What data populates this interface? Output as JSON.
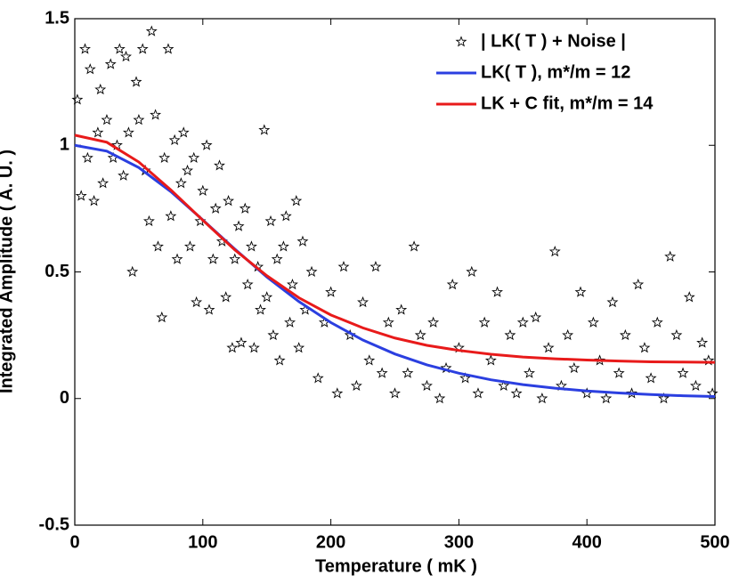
{
  "chart_data": {
    "type": "scatter",
    "xlabel": "Temperature ( mK )",
    "ylabel": "Integrated Amplitude ( A. U. )",
    "xlim": [
      0,
      500
    ],
    "xticks": [
      0,
      100,
      200,
      300,
      400,
      500
    ],
    "ylim": [
      -0.5,
      1.5
    ],
    "yticks": [
      -0.5,
      0,
      0.5,
      1,
      1.5
    ],
    "legend": "upper right",
    "scatter": {
      "name": "| LK( T ) + Noise |",
      "color": "#000000",
      "x": [
        2,
        5,
        8,
        10,
        12,
        15,
        18,
        20,
        22,
        25,
        28,
        30,
        33,
        35,
        38,
        40,
        42,
        45,
        48,
        50,
        53,
        55,
        58,
        60,
        63,
        65,
        68,
        70,
        73,
        75,
        78,
        80,
        83,
        85,
        88,
        90,
        93,
        95,
        98,
        100,
        103,
        105,
        108,
        110,
        113,
        115,
        118,
        120,
        123,
        125,
        128,
        130,
        133,
        135,
        138,
        140,
        143,
        145,
        148,
        150,
        153,
        155,
        158,
        160,
        163,
        165,
        168,
        170,
        173,
        175,
        178,
        180,
        185,
        190,
        195,
        200,
        205,
        210,
        215,
        220,
        225,
        230,
        235,
        240,
        245,
        250,
        255,
        260,
        265,
        270,
        275,
        280,
        285,
        290,
        295,
        300,
        305,
        310,
        315,
        320,
        325,
        330,
        335,
        340,
        345,
        350,
        355,
        360,
        365,
        370,
        375,
        380,
        385,
        390,
        395,
        400,
        405,
        410,
        415,
        420,
        425,
        430,
        435,
        440,
        445,
        450,
        455,
        460,
        465,
        470,
        475,
        480,
        485,
        490,
        495,
        498
      ],
      "y": [
        1.18,
        0.8,
        1.38,
        0.95,
        1.3,
        0.78,
        1.05,
        1.22,
        0.85,
        1.1,
        1.32,
        0.95,
        1.0,
        1.38,
        0.88,
        1.35,
        1.05,
        0.5,
        1.25,
        1.1,
        1.38,
        0.9,
        0.7,
        1.45,
        1.12,
        0.6,
        0.32,
        0.95,
        1.38,
        0.72,
        1.02,
        0.55,
        0.85,
        1.05,
        0.9,
        0.6,
        0.95,
        0.38,
        0.7,
        0.82,
        1.0,
        0.35,
        0.55,
        0.75,
        0.92,
        0.62,
        0.4,
        0.78,
        0.2,
        0.55,
        0.68,
        0.22,
        0.75,
        0.45,
        0.6,
        0.2,
        0.52,
        0.35,
        1.06,
        0.4,
        0.7,
        0.25,
        0.55,
        0.15,
        0.6,
        0.72,
        0.3,
        0.45,
        0.78,
        0.2,
        0.62,
        0.35,
        0.5,
        0.08,
        0.3,
        0.42,
        0.02,
        0.52,
        0.25,
        0.05,
        0.38,
        0.15,
        0.52,
        0.1,
        0.3,
        0.02,
        0.35,
        0.1,
        0.6,
        0.25,
        0.05,
        0.3,
        0.0,
        0.12,
        0.45,
        0.2,
        0.08,
        0.5,
        0.02,
        0.3,
        0.15,
        0.42,
        0.05,
        0.25,
        0.02,
        0.3,
        0.1,
        0.32,
        0.0,
        0.2,
        0.58,
        0.05,
        0.25,
        0.12,
        0.42,
        0.02,
        0.3,
        0.15,
        0.0,
        0.38,
        0.1,
        0.25,
        0.02,
        0.45,
        0.2,
        0.08,
        0.3,
        0.0,
        0.56,
        0.25,
        0.1,
        0.4,
        0.05,
        0.22,
        0.15,
        0.02
      ]
    },
    "x": [
      0,
      25,
      50,
      75,
      100,
      125,
      150,
      175,
      200,
      225,
      250,
      275,
      300,
      325,
      350,
      375,
      400,
      425,
      450,
      475,
      500
    ],
    "series": [
      {
        "name": "LK( T ), m*/m = 12",
        "color": "#2b3fe0",
        "values": [
          1.0,
          0.977,
          0.912,
          0.817,
          0.705,
          0.59,
          0.48,
          0.383,
          0.3,
          0.231,
          0.176,
          0.133,
          0.1,
          0.074,
          0.055,
          0.041,
          0.03,
          0.022,
          0.016,
          0.011,
          0.008
        ]
      },
      {
        "name": "LK + C fit, m*/m = 14",
        "color": "#e81a1a",
        "values": [
          1.04,
          1.012,
          0.934,
          0.824,
          0.704,
          0.587,
          0.485,
          0.398,
          0.33,
          0.279,
          0.239,
          0.21,
          0.19,
          0.175,
          0.164,
          0.157,
          0.152,
          0.148,
          0.145,
          0.144,
          0.143
        ]
      }
    ]
  }
}
